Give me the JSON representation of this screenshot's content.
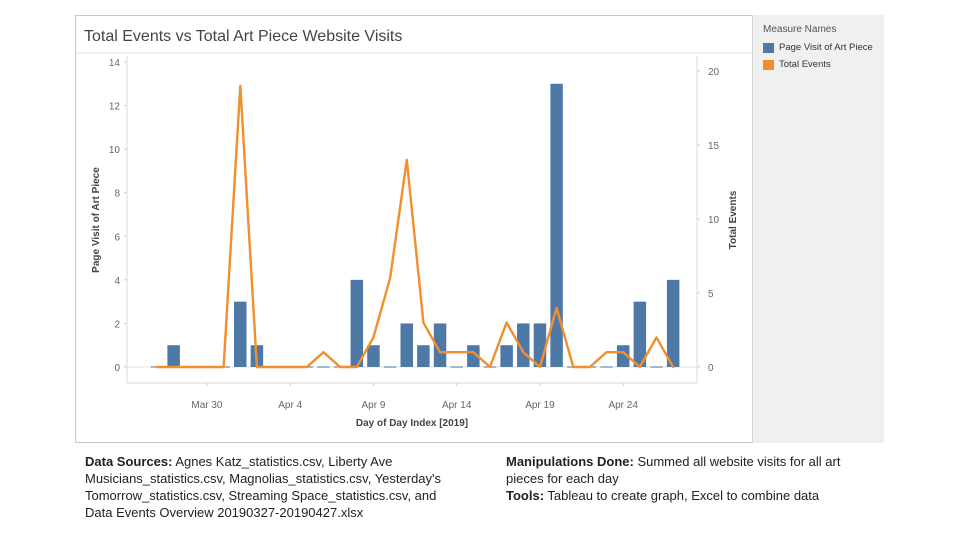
{
  "chart_data": {
    "type": "bar+line",
    "title": "Total Events vs Total Art Piece Website Visits",
    "xlabel": "Day of Day Index [2019]",
    "ylabel_left": "Page Visit of Art Piece",
    "ylabel_right": "Total Events",
    "ylim_left": [
      0,
      14
    ],
    "ylim_right": [
      0,
      20
    ],
    "yticks_left": [
      "0",
      "2",
      "4",
      "6",
      "8",
      "10",
      "12",
      "14"
    ],
    "yticks_right": [
      "0",
      "5",
      "10",
      "15",
      "20"
    ],
    "x_tick_labels": [
      {
        "label": "Mar 30",
        "date": "2019-03-30"
      },
      {
        "label": "Apr 4",
        "date": "2019-04-04"
      },
      {
        "label": "Apr 9",
        "date": "2019-04-09"
      },
      {
        "label": "Apr 14",
        "date": "2019-04-14"
      },
      {
        "label": "Apr 19",
        "date": "2019-04-19"
      },
      {
        "label": "Apr 24",
        "date": "2019-04-24"
      }
    ],
    "legend_title": "Measure Names",
    "legend_placement": "right",
    "dates": [
      "2019-03-27",
      "2019-03-28",
      "2019-03-29",
      "2019-03-30",
      "2019-03-31",
      "2019-04-01",
      "2019-04-02",
      "2019-04-03",
      "2019-04-04",
      "2019-04-05",
      "2019-04-06",
      "2019-04-07",
      "2019-04-08",
      "2019-04-09",
      "2019-04-10",
      "2019-04-11",
      "2019-04-12",
      "2019-04-13",
      "2019-04-14",
      "2019-04-15",
      "2019-04-16",
      "2019-04-17",
      "2019-04-18",
      "2019-04-19",
      "2019-04-20",
      "2019-04-21",
      "2019-04-22",
      "2019-04-23",
      "2019-04-24",
      "2019-04-25",
      "2019-04-26",
      "2019-04-27"
    ],
    "series": [
      {
        "name": "Page Visit of Art Piece",
        "type": "bar",
        "axis": "left",
        "color": "#4e79a7",
        "values": [
          0,
          1,
          0,
          0,
          0,
          3,
          1,
          0,
          0,
          0,
          0,
          0,
          4,
          1,
          0,
          2,
          1,
          2,
          0,
          1,
          0,
          1,
          2,
          2,
          13,
          0,
          0,
          0,
          1,
          3,
          0,
          4
        ]
      },
      {
        "name": "Total Events",
        "type": "line",
        "axis": "right",
        "color": "#f28e2b",
        "values": [
          0,
          0,
          0,
          0,
          0,
          19,
          0,
          0,
          0,
          0,
          1,
          0,
          0,
          2,
          6,
          14,
          3,
          1,
          1,
          1,
          0,
          3,
          1,
          0,
          4,
          0,
          0,
          1,
          1,
          0,
          2,
          0
        ]
      }
    ]
  },
  "footer": {
    "sources_label": "Data Sources:",
    "sources_lines": [
      " Agnes Katz_statistics.csv, Liberty Ave",
      "Musicians_statistics.csv, Magnolias_statistics.csv, Yesterday's",
      "Tomorrow_statistics.csv, Streaming Space_statistics.csv, and",
      "Data Events Overview 20190327-20190427.xlsx"
    ],
    "manipulations_label": "Manipulations Done:",
    "manipulations_line1": " Summed all website visits for all art",
    "manipulations_line2": "pieces for each day",
    "tools_label": "Tools:",
    "tools_text": " Tableau to create graph, Excel to combine data"
  }
}
